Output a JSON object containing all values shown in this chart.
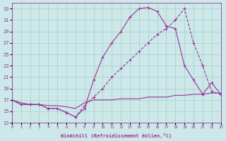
{
  "xlabel": "Windchill (Refroidissement éolien,°C)",
  "background_color": "#cce8e8",
  "grid_color": "#aacccc",
  "line_color": "#993399",
  "xlim": [
    0,
    23
  ],
  "ylim": [
    13,
    34
  ],
  "yticks": [
    13,
    15,
    17,
    19,
    21,
    23,
    25,
    27,
    29,
    31,
    33
  ],
  "xticks": [
    0,
    1,
    2,
    3,
    4,
    5,
    6,
    7,
    8,
    9,
    10,
    11,
    12,
    13,
    14,
    15,
    16,
    17,
    18,
    19,
    20,
    21,
    22,
    23
  ],
  "line1_x": [
    0,
    1,
    2,
    3,
    4,
    5,
    6,
    7,
    8,
    9,
    10,
    11,
    12,
    13,
    14,
    15,
    16,
    17,
    18,
    19,
    20,
    21,
    22,
    23
  ],
  "line1_y": [
    17.0,
    16.2,
    16.2,
    16.2,
    15.5,
    15.5,
    14.8,
    14.0,
    15.5,
    20.5,
    24.5,
    27.0,
    29.0,
    31.5,
    33.0,
    33.2,
    32.5,
    30.0,
    29.5,
    23.0,
    20.5,
    18.0,
    20.0,
    18.0
  ],
  "line2_x": [
    0,
    1,
    2,
    3,
    4,
    5,
    6,
    7,
    8,
    9,
    10,
    11,
    12,
    13,
    14,
    15,
    16,
    17,
    18,
    19,
    20,
    21,
    22,
    23
  ],
  "line2_y": [
    17.0,
    16.2,
    16.2,
    16.2,
    15.5,
    15.5,
    14.8,
    14.0,
    16.0,
    17.5,
    19.0,
    21.0,
    22.5,
    24.0,
    25.5,
    27.0,
    28.5,
    29.5,
    31.0,
    33.0,
    27.0,
    23.0,
    18.5,
    18.0
  ],
  "line3_x": [
    0,
    1,
    2,
    3,
    4,
    5,
    6,
    7,
    8,
    9,
    10,
    11,
    12,
    13,
    14,
    15,
    16,
    17,
    18,
    19,
    20,
    21,
    22,
    23
  ],
  "line3_y": [
    17.0,
    16.5,
    16.2,
    16.2,
    16.0,
    16.0,
    15.8,
    15.5,
    16.5,
    17.0,
    17.0,
    17.0,
    17.2,
    17.2,
    17.2,
    17.5,
    17.5,
    17.5,
    17.8,
    17.8,
    18.0,
    18.0,
    18.2,
    18.2
  ]
}
